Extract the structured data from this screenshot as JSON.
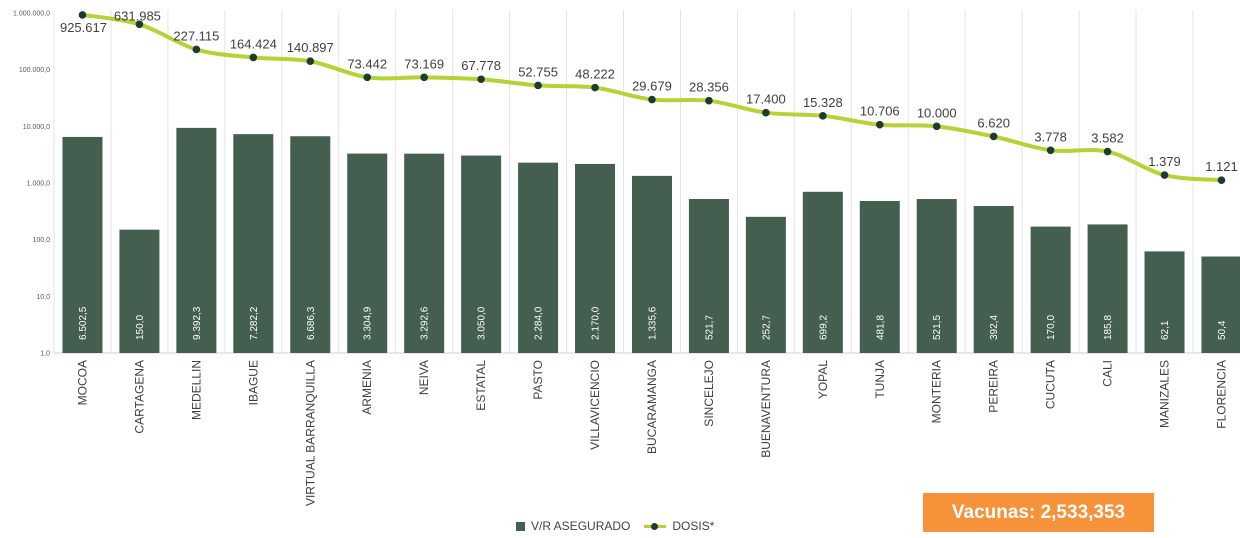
{
  "chart_data": {
    "type": "bar",
    "y_scale": "log",
    "ylim": [
      1,
      1000000
    ],
    "y_ticks": [
      "1.000.000,0",
      "100.000,0",
      "10.000,0",
      "1.000,0",
      "100,0",
      "10,0",
      "1,0"
    ],
    "y_tick_values": [
      1000000,
      100000,
      10000,
      1000,
      100,
      10,
      1
    ],
    "grid": "vertical separators between categories",
    "legend_position": "bottom",
    "categories": [
      "MOCOA",
      "CARTAGENA",
      "MEDELLIN",
      "IBAGUE",
      "VIRTUAL BARRANQUILLA",
      "ARMENIA",
      "NEIVA",
      "ESTATAL",
      "PASTO",
      "VILLAVICENCIO",
      "BUCARAMANGA",
      "SINCELEJO",
      "BUENAVENTURA",
      "YOPAL",
      "TUNJA",
      "MONTERIA",
      "PEREIRA",
      "CUCUTA",
      "CALI",
      "MANIZALES",
      "FLORENCIA"
    ],
    "series": [
      {
        "name": "V/R ASEGURADO",
        "kind": "bar",
        "color": "#445e4f",
        "values": [
          6502.5,
          150.0,
          9392.3,
          7282.2,
          6686.3,
          3304.9,
          3292.6,
          3050.0,
          2284.0,
          2170.0,
          1335.6,
          521.7,
          252.7,
          699.2,
          481.8,
          521.5,
          392.4,
          170.0,
          185.8,
          62.1,
          50.4
        ],
        "labels": [
          "6.502,5",
          "150,0",
          "9.392,3",
          "7.282,2",
          "6.686,3",
          "3.304,9",
          "3.292,6",
          "3.050,0",
          "2.284,0",
          "2.170,0",
          "1.335,6",
          "521,7",
          "252,7",
          "699,2",
          "481,8",
          "521,5",
          "392,4",
          "170,0",
          "185,8",
          "62,1",
          "50,4"
        ]
      },
      {
        "name": "DOSIS*",
        "kind": "line",
        "color": "#b4d334",
        "marker_color": "#1f3b2e",
        "values": [
          925617,
          631985,
          227115,
          164424,
          140897,
          73442,
          73169,
          67778,
          52755,
          48222,
          29679,
          28356,
          17400,
          15328,
          10706,
          10000,
          6620,
          3778,
          3582,
          1379,
          1121
        ],
        "labels": [
          "925.617",
          "631.985",
          "227.115",
          "164.424",
          "140.897",
          "73.442",
          "73.169",
          "67.778",
          "52.755",
          "48.222",
          "29.679",
          "28.356",
          "17.400",
          "15.328",
          "10.706",
          "10.000",
          "6.620",
          "3.778",
          "3.582",
          "1.379",
          "1.121"
        ]
      }
    ]
  },
  "legend": {
    "bar_label": "V/R ASEGURADO",
    "line_label": "DOSIS*"
  },
  "badge": {
    "text": "Vacunas: 2,533,353",
    "color": "#f5923a"
  }
}
